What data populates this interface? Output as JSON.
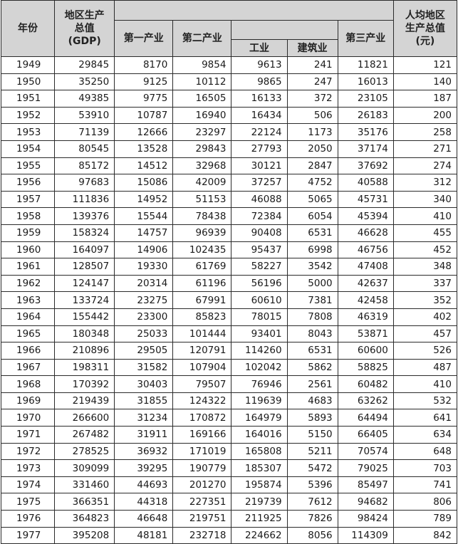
{
  "header": {
    "year": "年份",
    "gdp": [
      "地区生产",
      "总值",
      "(GDP)"
    ],
    "primary": "第一产业",
    "secondary": "第二产业",
    "industry": "工业",
    "construction": "建筑业",
    "tertiary": "第三产业",
    "per_capita": [
      "人均地区",
      "生产总值",
      "(元)"
    ]
  },
  "rows": [
    [
      "1949",
      "29845",
      "8170",
      "9854",
      "9613",
      "241",
      "11821",
      "121"
    ],
    [
      "1950",
      "35250",
      "9125",
      "10112",
      "9865",
      "247",
      "16013",
      "140"
    ],
    [
      "1951",
      "49385",
      "9775",
      "16505",
      "16133",
      "372",
      "23105",
      "187"
    ],
    [
      "1952",
      "53910",
      "10787",
      "16940",
      "16434",
      "506",
      "26183",
      "200"
    ],
    [
      "1953",
      "71139",
      "12666",
      "23297",
      "22124",
      "1173",
      "35176",
      "258"
    ],
    [
      "1954",
      "80545",
      "13528",
      "29843",
      "27793",
      "2050",
      "37174",
      "271"
    ],
    [
      "1955",
      "85172",
      "14512",
      "32968",
      "30121",
      "2847",
      "37692",
      "274"
    ],
    [
      "1956",
      "97683",
      "15086",
      "42009",
      "37257",
      "4752",
      "40588",
      "312"
    ],
    [
      "1957",
      "111836",
      "14952",
      "51153",
      "46088",
      "5065",
      "45731",
      "340"
    ],
    [
      "1958",
      "139376",
      "15544",
      "78438",
      "72384",
      "6054",
      "45394",
      "410"
    ],
    [
      "1959",
      "158324",
      "14757",
      "96939",
      "90408",
      "6531",
      "46628",
      "455"
    ],
    [
      "1960",
      "164097",
      "14906",
      "102435",
      "95437",
      "6998",
      "46756",
      "452"
    ],
    [
      "1961",
      "128507",
      "19330",
      "61769",
      "58227",
      "3542",
      "47408",
      "348"
    ],
    [
      "1962",
      "124147",
      "20314",
      "61196",
      "56196",
      "5000",
      "42637",
      "337"
    ],
    [
      "1963",
      "133724",
      "23275",
      "67991",
      "60610",
      "7381",
      "42458",
      "352"
    ],
    [
      "1964",
      "155442",
      "23300",
      "85823",
      "78015",
      "7808",
      "46319",
      "402"
    ],
    [
      "1965",
      "180348",
      "25033",
      "101444",
      "93401",
      "8043",
      "53871",
      "457"
    ],
    [
      "1966",
      "210896",
      "29505",
      "120791",
      "114260",
      "6531",
      "60600",
      "526"
    ],
    [
      "1967",
      "198311",
      "31582",
      "107904",
      "102042",
      "5862",
      "58825",
      "487"
    ],
    [
      "1968",
      "170392",
      "30403",
      "79507",
      "76946",
      "2561",
      "60482",
      "410"
    ],
    [
      "1969",
      "219439",
      "31855",
      "124322",
      "119639",
      "4683",
      "63262",
      "532"
    ],
    [
      "1970",
      "266600",
      "31234",
      "170872",
      "164979",
      "5893",
      "64494",
      "641"
    ],
    [
      "1971",
      "267482",
      "31911",
      "169166",
      "164016",
      "5150",
      "66405",
      "634"
    ],
    [
      "1972",
      "278525",
      "36932",
      "171019",
      "165808",
      "5211",
      "70574",
      "648"
    ],
    [
      "1973",
      "309099",
      "39295",
      "190779",
      "185307",
      "5472",
      "79025",
      "703"
    ],
    [
      "1974",
      "331460",
      "44693",
      "201270",
      "195874",
      "5396",
      "85497",
      "741"
    ],
    [
      "1975",
      "366351",
      "44318",
      "227351",
      "219739",
      "7612",
      "94682",
      "806"
    ],
    [
      "1976",
      "364823",
      "46648",
      "219751",
      "211925",
      "7826",
      "98424",
      "789"
    ],
    [
      "1977",
      "395208",
      "48181",
      "232718",
      "224662",
      "8056",
      "114309",
      "842"
    ]
  ]
}
